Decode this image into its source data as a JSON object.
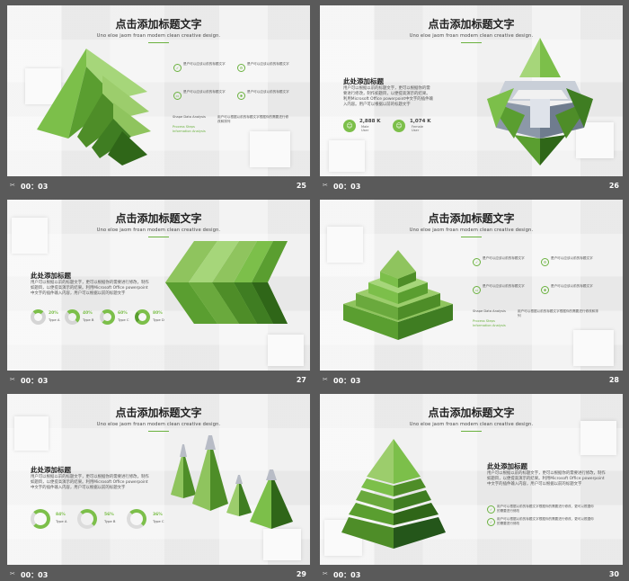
{
  "slides": [
    {
      "title": "点击添加标题文字",
      "subtitle": "Uno eloe jaom froan modem clean creative design.",
      "items": [
        "是户可以应该以前的标题文字",
        "是户可以应该以前的标题文字",
        "是户可以应该以前的标题文字",
        "是户可以应该以前的标题文字"
      ],
      "shape_analysis": "Shape Data Analysis",
      "process": "Process Steps",
      "information": "Information Analysis",
      "long_text": "用户可以根据以前的标题文字根据你的需要进行修改和排列",
      "time": "00：03",
      "page": "25"
    },
    {
      "title": "点击添加标题文字",
      "subtitle": "Uno eloe jaom froan modem clean creative design.",
      "heading": "此处添加标题",
      "body": "用户可以根据以前的标题文字，更可以根据你的需要进行修改，制作如题目，以便提高演示的结果。利用Microsoft Office powerpoint中文字的插件输入内容。用户可以根据以前的标题文字",
      "stat1_value": "2,888 K",
      "stat1_label1": "Male",
      "stat1_label2": "User",
      "stat2_value": "1,074 K",
      "stat2_label1": "Female",
      "stat2_label2": "User",
      "time": "00：03",
      "page": "26"
    },
    {
      "title": "点击添加标题文字",
      "subtitle": "Uno eloe jaom froan modem clean creative design.",
      "heading": "此处添加标题",
      "body": "用户可以根据以前的标题文字，更可以根据你的需要进行修改，制作如题目，以便提高演示的结果。利用Microsoft Office powerpoint中文字的插件输入内容，用户可以根据以前的标题文字",
      "rings": [
        {
          "pct": "20%",
          "label": "Type A",
          "value": 0.2
        },
        {
          "pct": "40%",
          "label": "Type B",
          "value": 0.4
        },
        {
          "pct": "60%",
          "label": "Type C",
          "value": 0.6
        },
        {
          "pct": "80%",
          "label": "Type D",
          "value": 0.8
        }
      ],
      "time": "00：03",
      "page": "27"
    },
    {
      "title": "点击添加标题文字",
      "subtitle": "Uno eloe jaom froan modem clean creative design.",
      "items": [
        "是户可以应该以前的标题文字",
        "是户可以应该以前的标题文字",
        "是户可以应该以前的标题文字",
        "是户可以应该以前的标题文字"
      ],
      "shape_analysis": "Shape Data Analysis",
      "process": "Process Steps",
      "information": "Information Analysis",
      "long_text": "用户可以根据以前的标题文字根据你的需要进行修改和排列",
      "time": "00：03",
      "page": "28"
    },
    {
      "title": "点击添加标题文字",
      "subtitle": "Uno eloe jaom froan modem clean creative design.",
      "heading": "此处添加标题",
      "body": "用户可以根据以前的标题文字，更可以根据你的需要进行修改，制作如题目，以便提高演示的结果。利用Microsoft Office powerpoint中文字的插件输入内容，用户可以根据以前的标题文字",
      "rings": [
        {
          "pct": "84%",
          "label": "Type A",
          "value": 0.84
        },
        {
          "pct": "56%",
          "label": "Type B",
          "value": 0.56
        },
        {
          "pct": "36%",
          "label": "Type C",
          "value": 0.36
        }
      ],
      "time": "00：03",
      "page": "29"
    },
    {
      "title": "点击添加标题文字",
      "subtitle": "Uno eloe jaom froan modem clean creative design.",
      "heading": "此处添加标题",
      "body": "用户可以根据以前的标题文字，更可以根据你的需要进行修改，制作如题目，以便提高演示的结果。利用Microsoft Office powerpoint中文字的插件输入内容，用户可以根据以前的标题文字",
      "bullet1": "用户可以根据以前的标题文字根据你的需要进行修改，更可以根据你的需要进行修改",
      "bullet2": "用户可以根据以前的标题文字根据你的需要进行修改，更可以根据你的需要进行修改",
      "time": "00：03",
      "page": "30"
    }
  ],
  "colors": {
    "accent": "#6bb23f",
    "dark_green": "#3f7d22",
    "background": "#5a5a5a"
  },
  "icons": {
    "footer": "video-clip-icon"
  }
}
